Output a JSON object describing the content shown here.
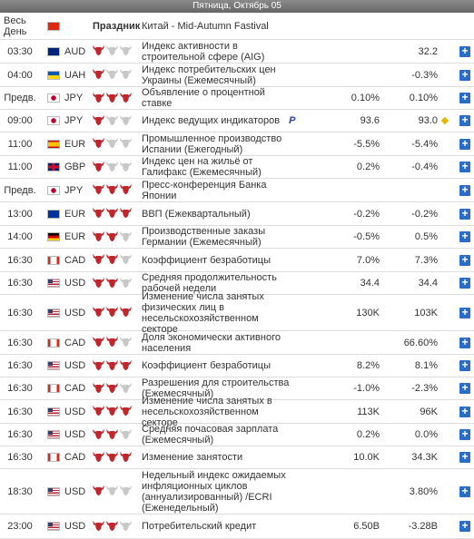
{
  "header": {
    "title": "Пятница, Октябрь 05"
  },
  "holiday": {
    "time": "Весь День",
    "label": "Праздник",
    "event": "Китай - Mid-Autumn Fastival"
  },
  "rows": [
    {
      "time": "03:30",
      "currency": "AUD",
      "importance": 1,
      "event": "Индекс активности в строительной сфере (AIG)",
      "forecast": "",
      "previous": "32.2"
    },
    {
      "time": "04:00",
      "currency": "UAH",
      "importance": 1,
      "event": "Индекс потребительских цен Украины (Ежемесячный)",
      "forecast": "",
      "previous": "-0.3%"
    },
    {
      "time": "Предв.",
      "currency": "JPY",
      "importance": 3,
      "event": "Объявление о процентной ставке",
      "forecast": "0.10%",
      "previous": "0.10%"
    },
    {
      "time": "09:00",
      "currency": "JPY",
      "importance": 1,
      "event": "Индекс ведущих индикаторов",
      "badge": "P",
      "forecast": "93.6",
      "previous": "93.0"
    },
    {
      "time": "11:00",
      "currency": "EUR",
      "importance": 1,
      "event": "Промышленное производство Испании (Ежегодный)",
      "forecast": "-5.5%",
      "previous": "-5.4%"
    },
    {
      "time": "11:00",
      "currency": "GBP",
      "importance": 1,
      "event": "Индекс цен на жильё от Галифакс (Ежемесячный)",
      "forecast": "0.2%",
      "previous": "-0.4%"
    },
    {
      "time": "Предв.",
      "currency": "JPY",
      "importance": 3,
      "event": "Пресс-конференция Банка Японии",
      "forecast": "",
      "previous": ""
    },
    {
      "time": "13:00",
      "currency": "EUR",
      "importance": 3,
      "event": "ВВП (Ежеквартальный)",
      "forecast": "-0.2%",
      "previous": "-0.2%"
    },
    {
      "time": "14:00",
      "currency": "EUR",
      "importance": 2,
      "event": "Производственные заказы Германии (Ежемесячный)",
      "forecast": "-0.5%",
      "previous": "0.5%"
    },
    {
      "time": "16:30",
      "currency": "CAD",
      "importance": 2,
      "event": "Коэффициент безработицы",
      "forecast": "7.0%",
      "previous": "7.3%"
    },
    {
      "time": "16:30",
      "currency": "USD",
      "importance": 2,
      "event": "Средняя продолжительность рабочей недели",
      "forecast": "34.4",
      "previous": "34.4"
    },
    {
      "time": "16:30",
      "currency": "USD",
      "importance": 3,
      "event": "Изменение числа занятых физических лиц в несельскохозяйственном секторе",
      "forecast": "130K",
      "previous": "103K"
    },
    {
      "time": "16:30",
      "currency": "CAD",
      "importance": 2,
      "event": "Доля экономически активного населения",
      "forecast": "",
      "previous": "66.60%"
    },
    {
      "time": "16:30",
      "currency": "USD",
      "importance": 3,
      "event": "Коэффициент безработицы",
      "forecast": "8.2%",
      "previous": "8.1%"
    },
    {
      "time": "16:30",
      "currency": "CAD",
      "importance": 2,
      "event": "Разрешения для строительства (Ежемесячный)",
      "forecast": "-1.0%",
      "previous": "-2.3%"
    },
    {
      "time": "16:30",
      "currency": "USD",
      "importance": 3,
      "event": "Изменение числа занятых в несельскохозяйственном секторе",
      "forecast": "113K",
      "previous": "96K"
    },
    {
      "time": "16:30",
      "currency": "USD",
      "importance": 2,
      "event": "Средняя почасовая зарплата (Ежемесячный)",
      "forecast": "0.2%",
      "previous": "0.0%"
    },
    {
      "time": "16:30",
      "currency": "CAD",
      "importance": 3,
      "event": "Изменение занятости",
      "forecast": "10.0K",
      "previous": "34.3K"
    },
    {
      "time": "18:30",
      "currency": "USD",
      "importance": 1,
      "event": "Недельный индекс ожидаемых инфляционных циклов (аннуализированный) /ECRI (Еженедельный)",
      "forecast": "",
      "previous": "3.80%"
    },
    {
      "time": "23:00",
      "currency": "USD",
      "importance": 2,
      "event": "Потребительский кредит",
      "forecast": "6.50B",
      "previous": "-3.28B"
    }
  ]
}
